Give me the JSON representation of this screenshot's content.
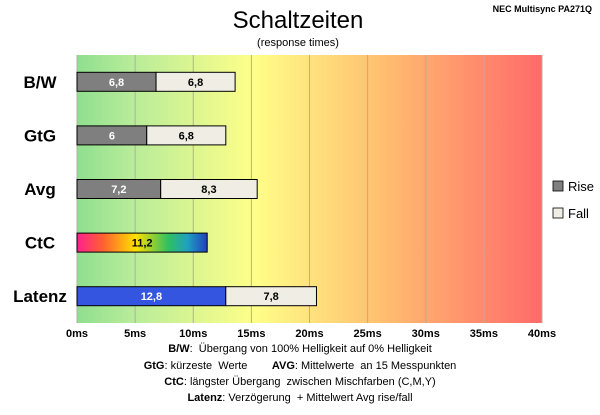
{
  "chart_data": {
    "type": "bar",
    "title": "Schaltzeiten",
    "subtitle": "(response times)",
    "model": "NEC Multisync PA271Q",
    "categories": [
      "B/W",
      "GtG",
      "Avg",
      "CtC",
      "Latenz"
    ],
    "series": [
      {
        "name": "Rise",
        "values": [
          6.8,
          6,
          7.2,
          null,
          12.8
        ],
        "labels": [
          "6,8",
          "6",
          "7,2",
          null,
          "12,8"
        ]
      },
      {
        "name": "Fall",
        "values": [
          6.8,
          6.8,
          8.3,
          null,
          7.8
        ],
        "labels": [
          "6,8",
          "6,8",
          "8,3",
          null,
          "7,8"
        ]
      },
      {
        "name": "",
        "values": [
          null,
          null,
          null,
          11.2,
          null
        ],
        "labels": [
          null,
          null,
          null,
          "11,2",
          null
        ]
      }
    ],
    "stacked": true,
    "orientation": "horizontal",
    "xlim": [
      0,
      40
    ],
    "xticks": [
      "0ms",
      "5ms",
      "10ms",
      "15ms",
      "20ms",
      "25ms",
      "30ms",
      "35ms",
      "40ms"
    ],
    "grid": true,
    "legend_position": "right",
    "colors": {
      "rise": "#7f7f7f",
      "fall": "#f0eee4",
      "latency_rise": "#3355e0",
      "background_start": "#8fdf8f",
      "background_mid": "#ffff88",
      "background_end": "#ff6a6a"
    }
  },
  "notes": [
    {
      "lead": "B/W",
      "text": ":  Übergang von 100% Helligkeit auf 0% Helligkeit"
    },
    {
      "lead": "GtG",
      "text": ": kürzeste  Werte",
      "lead2": "AVG",
      "text2": ": Mittelwerte  an 15 Messpunkten"
    },
    {
      "lead": "CtC",
      "text": ": längster Übergang  zwischen Mischfarben (C,M,Y)"
    },
    {
      "lead": "Latenz",
      "text": ": Verzögerung  + Mittelwert Avg rise/fall"
    }
  ]
}
